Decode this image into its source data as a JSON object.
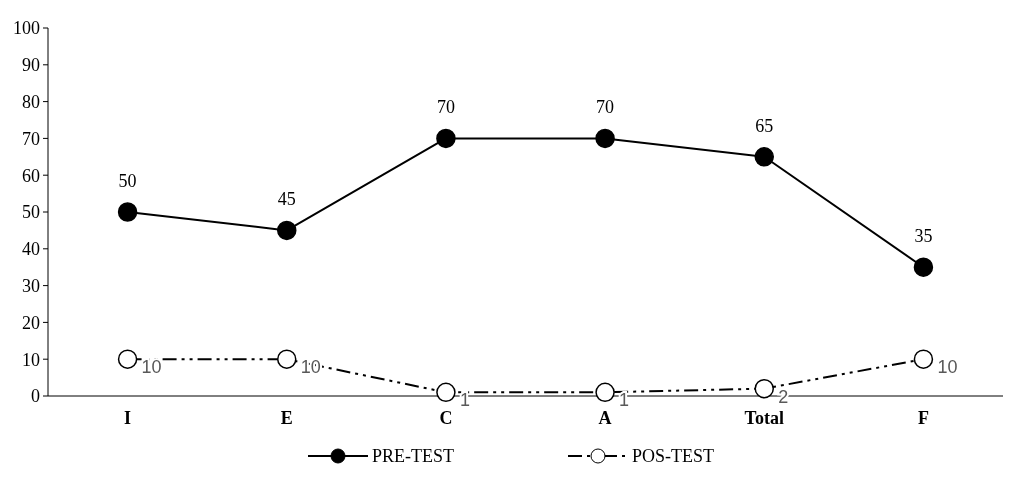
{
  "chart_data": {
    "type": "line",
    "categories": [
      "I",
      "E",
      "C",
      "A",
      "Total",
      "F"
    ],
    "series": [
      {
        "name": "PRE-TEST",
        "color": "#000000",
        "values": [
          50,
          45,
          70,
          70,
          65,
          35
        ],
        "line_style": "solid"
      },
      {
        "name": "POS-TEST",
        "color": "#000000",
        "values": [
          10,
          10,
          1,
          1,
          2,
          10
        ],
        "line_style": "dashed"
      }
    ],
    "ylim": [
      0,
      100
    ],
    "yticks": [
      0,
      10,
      20,
      30,
      40,
      50,
      60,
      70,
      80,
      90,
      100
    ],
    "marker": "circle",
    "data_labels": true,
    "legend": "bottom",
    "grid": false
  }
}
